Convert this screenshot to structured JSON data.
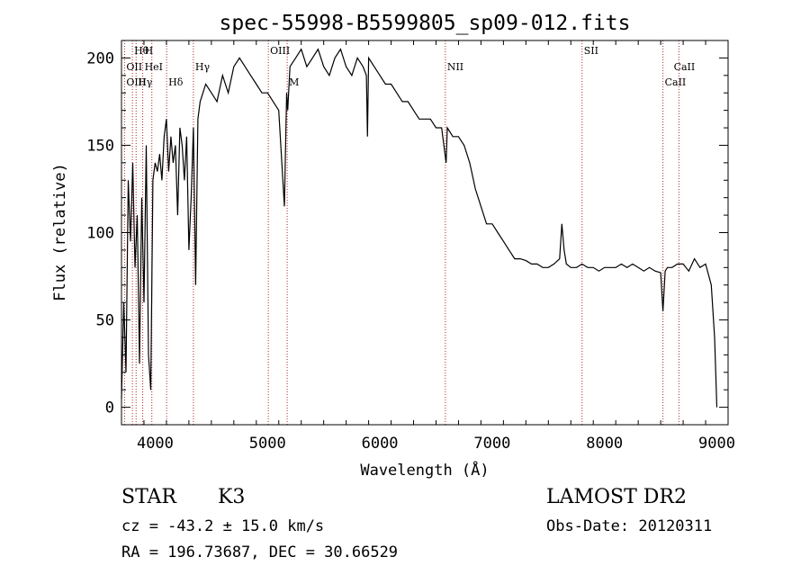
{
  "chart_data": {
    "type": "line",
    "title": "spec-55998-B5599805_sp09-012.fits",
    "xlabel": "Wavelength (Å)",
    "ylabel": "Flux (relative)",
    "xlim": [
      3700,
      9100
    ],
    "ylim": [
      -10,
      210
    ],
    "x_ticks": [
      4000,
      5000,
      6000,
      7000,
      8000,
      9000
    ],
    "y_ticks": [
      0,
      50,
      100,
      150,
      200
    ],
    "grid": false,
    "series": [
      {
        "x": [
          3700,
          3720,
          3740,
          3760,
          3780,
          3800,
          3820,
          3840,
          3860,
          3880,
          3900,
          3920,
          3940,
          3960,
          3980,
          4000,
          4020,
          4040,
          4060,
          4080,
          4100,
          4120,
          4140,
          4160,
          4180,
          4200,
          4220,
          4240,
          4260,
          4280,
          4300,
          4320,
          4340,
          4360,
          4380,
          4400,
          4450,
          4500,
          4550,
          4600,
          4650,
          4700,
          4750,
          4800,
          4850,
          4900,
          4950,
          5000,
          5050,
          5100,
          5150,
          5170,
          5180,
          5200,
          5250,
          5300,
          5350,
          5400,
          5450,
          5500,
          5550,
          5600,
          5650,
          5700,
          5750,
          5800,
          5850,
          5880,
          5890,
          5900,
          5950,
          6000,
          6050,
          6100,
          6150,
          6200,
          6250,
          6300,
          6350,
          6400,
          6450,
          6500,
          6550,
          6570,
          6590,
          6600,
          6650,
          6700,
          6750,
          6800,
          6850,
          6900,
          6950,
          7000,
          7050,
          7100,
          7150,
          7200,
          7250,
          7300,
          7350,
          7400,
          7450,
          7500,
          7550,
          7600,
          7620,
          7640,
          7660,
          7700,
          7750,
          7800,
          7850,
          7900,
          7950,
          8000,
          8050,
          8100,
          8150,
          8200,
          8250,
          8300,
          8350,
          8400,
          8450,
          8500,
          8520,
          8540,
          8560,
          8600,
          8650,
          8700,
          8750,
          8800,
          8850,
          8900,
          8950,
          8980,
          9000
        ],
        "y": [
          5,
          60,
          20,
          130,
          95,
          140,
          80,
          110,
          25,
          120,
          60,
          150,
          30,
          10,
          130,
          140,
          135,
          145,
          130,
          155,
          165,
          135,
          155,
          140,
          150,
          110,
          160,
          150,
          130,
          155,
          90,
          120,
          160,
          70,
          165,
          175,
          185,
          180,
          175,
          190,
          180,
          195,
          200,
          195,
          190,
          185,
          180,
          180,
          175,
          170,
          115,
          180,
          170,
          195,
          200,
          205,
          195,
          200,
          205,
          195,
          190,
          200,
          205,
          195,
          190,
          200,
          195,
          190,
          155,
          200,
          195,
          190,
          185,
          185,
          180,
          175,
          175,
          170,
          165,
          165,
          165,
          160,
          160,
          150,
          140,
          160,
          155,
          155,
          150,
          140,
          125,
          115,
          105,
          105,
          100,
          95,
          90,
          85,
          85,
          84,
          82,
          82,
          80,
          80,
          82,
          85,
          105,
          90,
          82,
          80,
          80,
          82,
          80,
          80,
          78,
          80,
          80,
          80,
          82,
          80,
          82,
          80,
          78,
          80,
          78,
          77,
          55,
          78,
          80,
          80,
          82,
          82,
          78,
          85,
          80,
          82,
          70,
          40,
          0
        ]
      }
    ],
    "line_markers": [
      {
        "label": "Hθ",
        "x": 3797,
        "row": 0
      },
      {
        "label": "H",
        "x": 3889,
        "row": 0
      },
      {
        "label": "OII",
        "x": 3727,
        "row": 1
      },
      {
        "label": "HeI",
        "x": 3889,
        "row": 1
      },
      {
        "label": "OIII",
        "x": 3727,
        "row": 2
      },
      {
        "label": "Hγ",
        "x": 3830,
        "row": 2
      },
      {
        "label": "Hδ",
        "x": 4102,
        "row": 2
      },
      {
        "label": "Hγ",
        "x": 4340,
        "row": 1
      },
      {
        "label": "OIII",
        "x": 5007,
        "row": 0
      },
      {
        "label": "M",
        "x": 5175,
        "row": 2
      },
      {
        "label": "NII",
        "x": 6583,
        "row": 1
      },
      {
        "label": "SII",
        "x": 7800,
        "row": 0
      },
      {
        "label": "CaII",
        "x": 8600,
        "row": 1
      },
      {
        "label": "CaII",
        "x": 8520,
        "row": 2
      }
    ],
    "marker_lines_x": [
      3727,
      3797,
      3830,
      3889,
      3970,
      4102,
      4340,
      5007,
      5175,
      6583,
      7800,
      8520,
      8662
    ]
  },
  "info": {
    "class_label": "STAR",
    "subclass": "K3",
    "survey": "LAMOST DR2",
    "cz": "cz = -43.2 ± 15.0 km/s",
    "obs_date": "Obs-Date: 20120311",
    "coords": "RA = 196.73687, DEC =  30.66529"
  },
  "colors": {
    "spectrum": "#000000",
    "marker_line": "#b22222",
    "background": "#ffffff"
  }
}
